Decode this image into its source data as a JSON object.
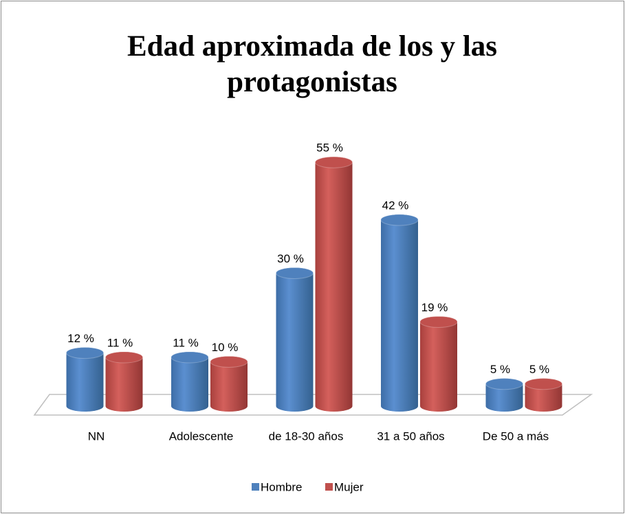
{
  "chart_data": {
    "type": "bar3d",
    "title": "Edad aproximada de los y las protagonistas",
    "categories": [
      "NN",
      "Adolescente",
      "de 18-30 años",
      "31 a 50 años",
      "De 50 a más"
    ],
    "series": [
      {
        "name": "Hombre",
        "color": "#4f81bd",
        "values": [
          12,
          11,
          30,
          42,
          5
        ],
        "value_labels": [
          "12 %",
          "11 %",
          "30 %",
          "42 %",
          "5 %"
        ]
      },
      {
        "name": "Mujer",
        "color": "#c0504d",
        "values": [
          11,
          10,
          55,
          19,
          5
        ],
        "value_labels": [
          "11 %",
          "10 %",
          "55 %",
          "19 %",
          "5 %"
        ]
      }
    ],
    "legend": "bottom"
  }
}
